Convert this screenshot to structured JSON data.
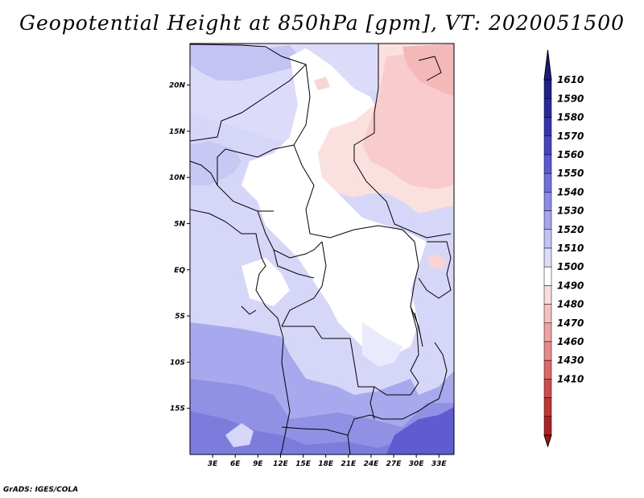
{
  "title": "Geopotential Height at 850hPa [gpm], VT: 2020051500",
  "credit": "GrADS: IGES/COLA",
  "map": {
    "lat_labels": [
      "20N",
      "15N",
      "10N",
      "5N",
      "EQ",
      "5S",
      "10S",
      "15S"
    ],
    "lon_labels": [
      "3E",
      "6E",
      "9E",
      "12E",
      "15E",
      "18E",
      "21E",
      "24E",
      "27E",
      "30E",
      "33E"
    ],
    "lat_values": [
      20,
      15,
      10,
      5,
      0,
      -5,
      -10,
      -15
    ],
    "lon_values": [
      3,
      6,
      9,
      12,
      15,
      18,
      21,
      24,
      27,
      30,
      33
    ],
    "extent": {
      "lon_min": 0,
      "lon_max": 35,
      "lat_min": -20,
      "lat_max": 24.5
    }
  },
  "colorbar": {
    "levels": [
      {
        "label": "1610",
        "color": "#1e1e8e"
      },
      {
        "label": "1590",
        "color": "#2a28a0"
      },
      {
        "label": "1580",
        "color": "#3632b4"
      },
      {
        "label": "1570",
        "color": "#4644c6"
      },
      {
        "label": "1560",
        "color": "#5a58d6"
      },
      {
        "label": "1550",
        "color": "#7170e0"
      },
      {
        "label": "1540",
        "color": "#8a8aea"
      },
      {
        "label": "1530",
        "color": "#a4a4f0"
      },
      {
        "label": "1520",
        "color": "#c2c2f6"
      },
      {
        "label": "1510",
        "color": "#dcdcfa"
      },
      {
        "label": "1500",
        "color": "#ffffff"
      },
      {
        "label": "1490",
        "color": "#fadcdc"
      },
      {
        "label": "1480",
        "color": "#f6c0c0"
      },
      {
        "label": "1470",
        "color": "#f0a2a2"
      },
      {
        "label": "1460",
        "color": "#e88888"
      },
      {
        "label": "1430",
        "color": "#de6868"
      },
      {
        "label": "1410",
        "color": "#d44848"
      },
      {
        "label": "",
        "color": "#c43232"
      },
      {
        "label": "",
        "color": "#b02020"
      }
    ],
    "top_color": "#1a1a80",
    "bottom_color": "#a01414"
  }
}
